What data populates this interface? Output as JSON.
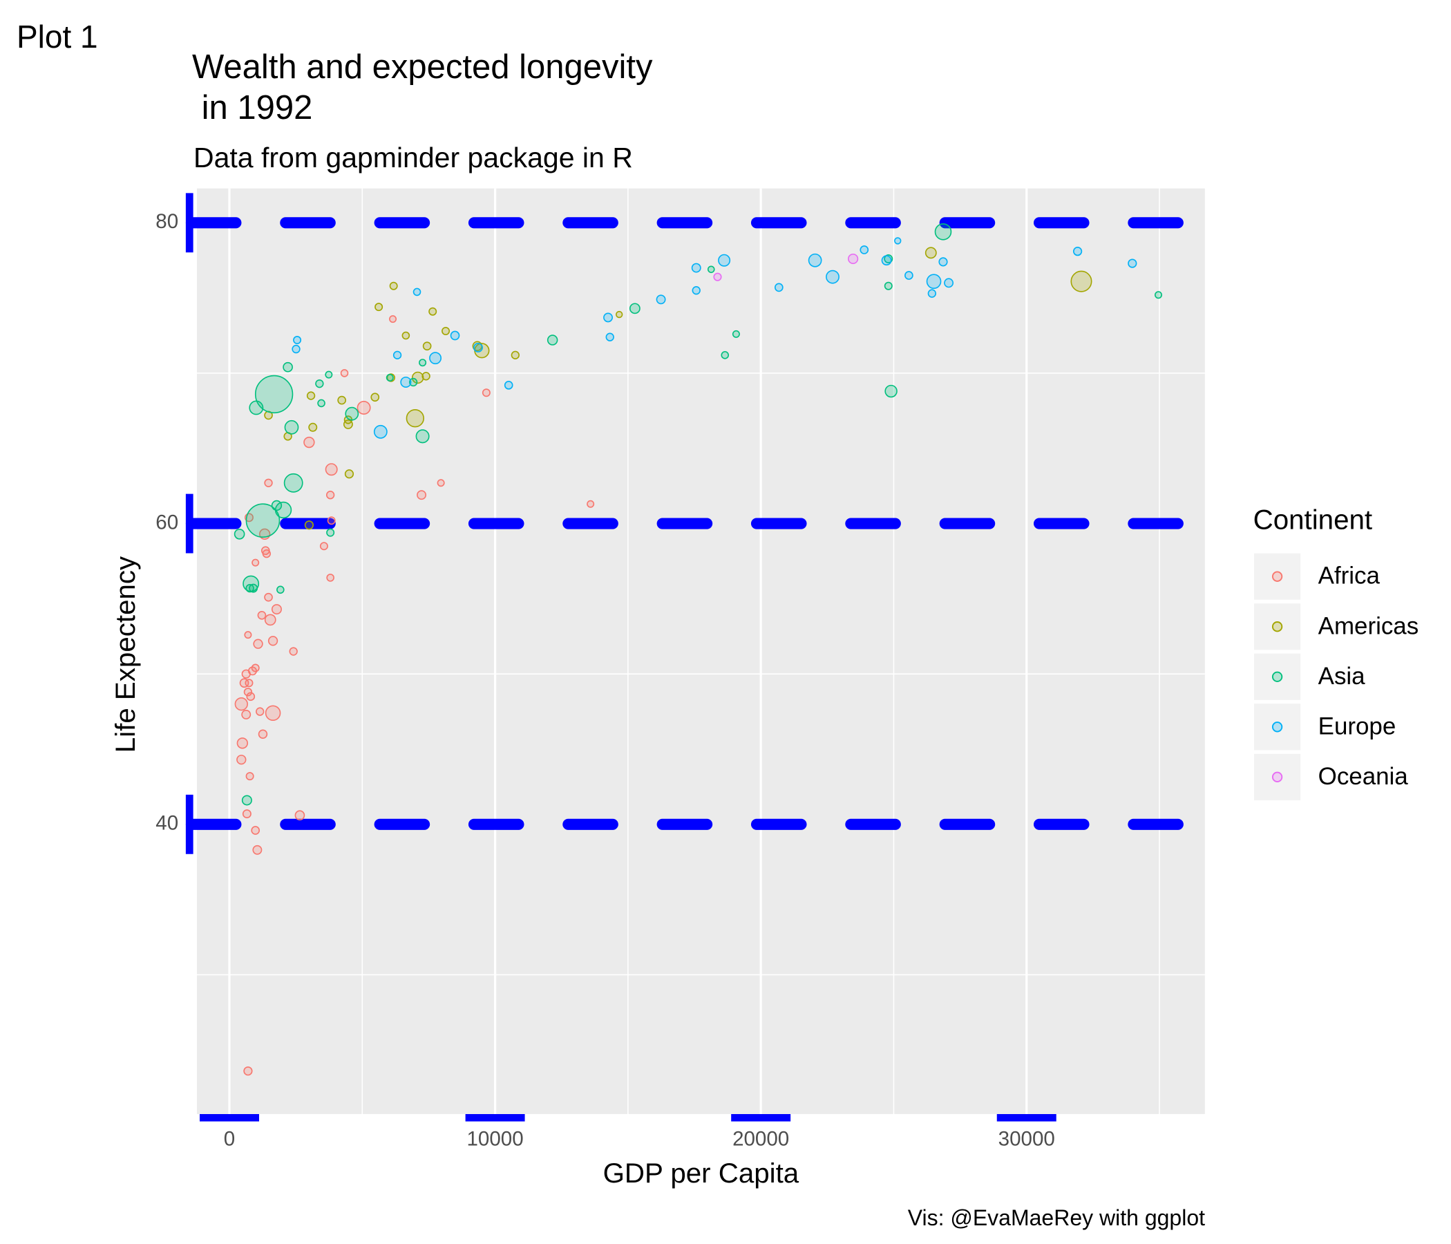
{
  "chart_data": {
    "type": "scatter",
    "tag": "Plot 1",
    "title": "Wealth and expected longevity\n in 1992",
    "subtitle": "Data from gapminder package in R",
    "caption": "Vis: @EvaMaeRey with ggplot",
    "x_label": "GDP per Capita",
    "y_label": "Life Expectency",
    "legend_title": "Continent",
    "legend_position": "right",
    "xlim": [
      -1222,
      36710
    ],
    "ylim": [
      20.74,
      82.28
    ],
    "xticks": [
      0,
      10000,
      20000,
      30000
    ],
    "yticks": [
      40,
      60,
      80
    ],
    "xminor": [
      5000,
      15000,
      25000,
      35000
    ],
    "yminor": [
      30,
      50,
      70
    ],
    "ygrid_color": "blue",
    "ygrid_dashed": true,
    "tick_color": "blue",
    "series": [
      {
        "name": "Africa",
        "color": "#F8766D",
        "x": [
          700,
          1050,
          980,
          660,
          2650,
          770,
          450,
          490,
          1260,
          1640,
          1150,
          630,
          450,
          800,
          700,
          740,
          560,
          630,
          870,
          980,
          2410,
          1080,
          1640,
          700,
          1540,
          1220,
          1780,
          3800,
          1470,
          3560,
          1400,
          980,
          1360,
          1330,
          3840,
          740,
          3800,
          1470,
          7960,
          7230,
          13590,
          3000,
          3840,
          5060,
          9670,
          4330,
          6150
        ],
        "y": [
          23.6,
          38.3,
          39.6,
          40.7,
          40.6,
          43.2,
          44.3,
          45.4,
          46.0,
          47.4,
          47.5,
          47.3,
          48.0,
          48.5,
          48.8,
          49.4,
          49.4,
          50.0,
          50.2,
          50.4,
          51.5,
          52.0,
          52.2,
          52.6,
          53.6,
          53.9,
          54.3,
          56.4,
          55.1,
          58.5,
          58.0,
          57.4,
          58.2,
          59.3,
          60.2,
          60.4,
          61.9,
          62.7,
          62.7,
          61.9,
          61.3,
          65.4,
          63.6,
          67.7,
          68.7,
          70.0,
          73.6
        ],
        "size": [
          7,
          10,
          5,
          6,
          14,
          3,
          12,
          25,
          8,
          93,
          4,
          10,
          52,
          5,
          4,
          3,
          9,
          7,
          6,
          3,
          4,
          12,
          12,
          1,
          28,
          5,
          16,
          2,
          5,
          3,
          4,
          1,
          5,
          25,
          3,
          6,
          4,
          4,
          1,
          10,
          1,
          25,
          39,
          59,
          3,
          2,
          1
        ]
      },
      {
        "name": "Americas",
        "color": "#A3A500",
        "x": [
          3000,
          1470,
          2200,
          3140,
          3070,
          4230,
          4470,
          4470,
          4510,
          5480,
          6990,
          6080,
          5620,
          6180,
          6640,
          7090,
          7400,
          7440,
          7650,
          8140,
          9330,
          9500,
          10760,
          14670,
          26400,
          32060
        ],
        "y": [
          59.9,
          67.2,
          65.8,
          66.4,
          68.5,
          68.2,
          66.6,
          66.9,
          63.3,
          68.4,
          67.0,
          69.7,
          74.4,
          75.8,
          72.5,
          69.7,
          69.8,
          71.8,
          74.1,
          72.8,
          71.8,
          71.5,
          71.2,
          73.9,
          78.0,
          76.1
        ],
        "size": [
          7,
          5,
          4,
          6,
          4,
          5,
          10,
          4,
          7,
          5,
          155,
          4,
          3,
          3,
          2,
          34,
          4,
          5,
          3,
          3,
          13,
          88,
          4,
          0.3,
          29,
          255
        ]
      },
      {
        "name": "Asia",
        "color": "#00BF7D",
        "x": [
          660,
          380,
          810,
          770,
          900,
          1920,
          1260,
          2030,
          1780,
          2410,
          3800,
          1680,
          1010,
          2340,
          2200,
          3390,
          3460,
          3740,
          4610,
          6040,
          6920,
          7270,
          7270,
          12160,
          15260,
          18650,
          19070,
          18130,
          24800,
          24900,
          24800,
          26860,
          34960
        ],
        "y": [
          41.6,
          59.3,
          56.0,
          55.7,
          55.7,
          55.6,
          60.2,
          60.9,
          61.2,
          62.7,
          59.4,
          68.6,
          67.7,
          66.4,
          70.4,
          69.3,
          68.0,
          69.9,
          67.3,
          69.7,
          69.4,
          65.8,
          70.7,
          72.2,
          74.3,
          71.2,
          72.6,
          76.9,
          75.8,
          68.8,
          77.6,
          79.4,
          75.2
        ],
        "size": [
          16,
          20,
          113,
          4,
          6,
          2,
          890,
          120,
          18,
          185,
          3,
          1165,
          70,
          68,
          14,
          4,
          2,
          1,
          57,
          1,
          4,
          60,
          1,
          19,
          21,
          2,
          1,
          0.5,
          3,
          43,
          6,
          124,
          1
        ]
      },
      {
        "name": "Europe",
        "color": "#00B0F6",
        "x": [
          2550,
          2510,
          5690,
          6320,
          6640,
          7060,
          7750,
          8490,
          9360,
          10510,
          14250,
          14320,
          16240,
          17570,
          17570,
          18620,
          20680,
          22040,
          22700,
          23890,
          24730,
          25150,
          25570,
          26440,
          26510,
          26860,
          27070,
          31920,
          33980
        ],
        "y": [
          72.2,
          71.6,
          66.1,
          71.2,
          69.4,
          75.4,
          71.0,
          72.5,
          71.7,
          69.2,
          73.7,
          72.4,
          74.9,
          77.0,
          75.5,
          77.5,
          75.7,
          77.5,
          76.4,
          78.2,
          77.5,
          78.8,
          76.5,
          75.3,
          76.1,
          77.4,
          76.0,
          78.1,
          77.3
        ],
        "size": [
          3,
          4,
          58,
          4,
          23,
          2,
          38,
          9,
          10,
          5,
          10,
          4,
          10,
          10,
          4,
          39,
          5,
          57,
          58,
          5,
          15,
          0.3,
          5,
          4,
          80,
          7,
          10,
          7,
          7
        ]
      },
      {
        "name": "Oceania",
        "color": "#E76BF3",
        "x": [
          23470,
          18370
        ],
        "y": [
          77.6,
          76.4
        ],
        "size": [
          17,
          3.4
        ]
      }
    ]
  }
}
